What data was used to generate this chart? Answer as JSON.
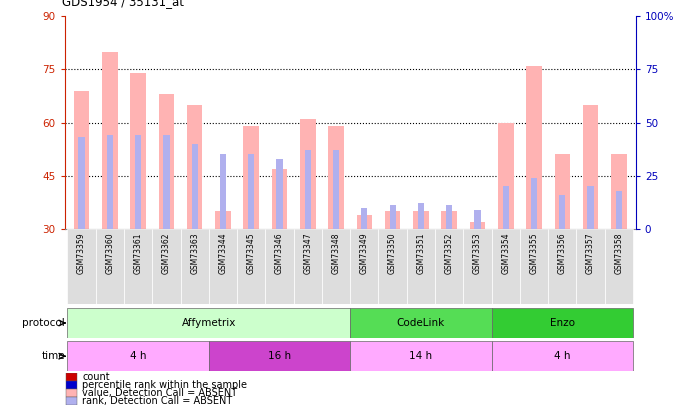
{
  "title": "GDS1954 / 35131_at",
  "samples": [
    "GSM73359",
    "GSM73360",
    "GSM73361",
    "GSM73362",
    "GSM73363",
    "GSM73344",
    "GSM73345",
    "GSM73346",
    "GSM73347",
    "GSM73348",
    "GSM73349",
    "GSM73350",
    "GSM73351",
    "GSM73352",
    "GSM73353",
    "GSM73354",
    "GSM73355",
    "GSM73356",
    "GSM73357",
    "GSM73358"
  ],
  "value_bars": [
    69,
    80,
    74,
    68,
    65,
    35,
    59,
    47,
    61,
    59,
    34,
    35,
    35,
    35,
    32,
    60,
    76,
    51,
    65,
    51
  ],
  "rank_bars": [
    43,
    44,
    44,
    44,
    40,
    35,
    35,
    33,
    37,
    37,
    10,
    11,
    12,
    11,
    9,
    20,
    24,
    16,
    20,
    18
  ],
  "value_color": "#FFB3B3",
  "rank_color": "#B0B0EE",
  "ylim_left": [
    30,
    90
  ],
  "ylim_right": [
    0,
    100
  ],
  "yticks_left": [
    30,
    45,
    60,
    75,
    90
  ],
  "ytick_labels_right": [
    "0",
    "25",
    "50",
    "75",
    "100%"
  ],
  "grid_dotted": [
    45,
    60,
    75
  ],
  "protocols": [
    {
      "label": "Affymetrix",
      "start": 0,
      "end": 9,
      "color": "#CCFFCC"
    },
    {
      "label": "CodeLink",
      "start": 10,
      "end": 14,
      "color": "#55DD55"
    },
    {
      "label": "Enzo",
      "start": 15,
      "end": 19,
      "color": "#33CC33"
    }
  ],
  "times": [
    {
      "label": "4 h",
      "start": 0,
      "end": 4,
      "color": "#FFAAFF"
    },
    {
      "label": "16 h",
      "start": 5,
      "end": 9,
      "color": "#CC44CC"
    },
    {
      "label": "14 h",
      "start": 10,
      "end": 14,
      "color": "#FFAAFF"
    },
    {
      "label": "4 h",
      "start": 15,
      "end": 19,
      "color": "#FFAAFF"
    }
  ],
  "legend_items": [
    {
      "color": "#CC0000",
      "label": "count"
    },
    {
      "color": "#0000CC",
      "label": "percentile rank within the sample"
    },
    {
      "color": "#FFB3B3",
      "label": "value, Detection Call = ABSENT"
    },
    {
      "color": "#B0B0EE",
      "label": "rank, Detection Call = ABSENT"
    }
  ],
  "bar_width": 0.55,
  "rank_bar_width": 0.22
}
